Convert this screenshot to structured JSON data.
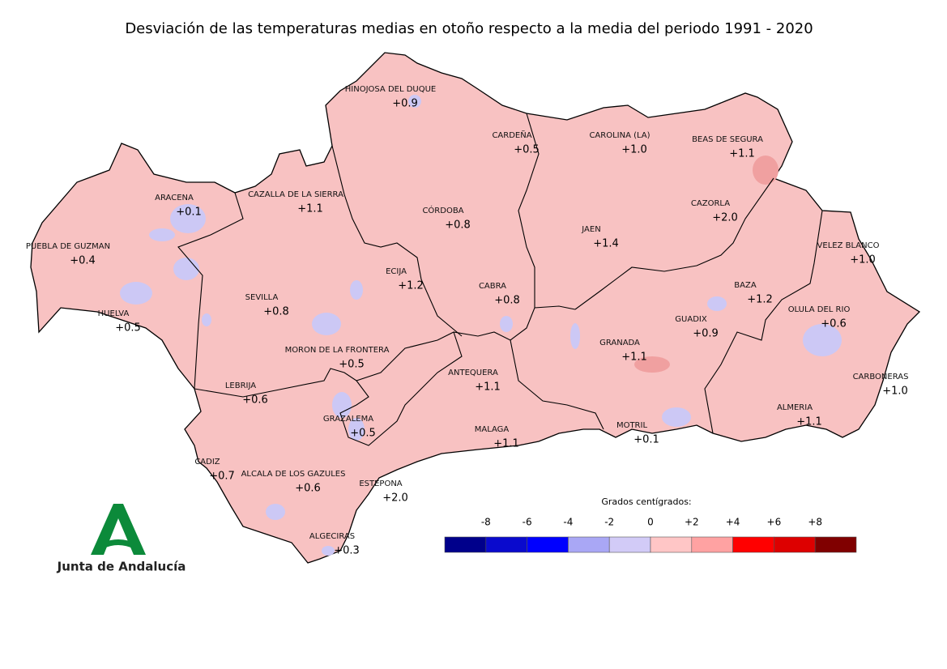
{
  "title": "Desviación de las temperaturas medias en otoño respecto a la media del periodo 1991 - 2020",
  "stations": [
    {
      "name": "HINOJOSA DEL DUQUE",
      "value": "+0.9"
    },
    {
      "name": "CARDEÑA",
      "value": "+0.5"
    },
    {
      "name": "CAROLINA (LA)",
      "value": "+1.0"
    },
    {
      "name": "BEAS DE SEGURA",
      "value": "+1.1"
    },
    {
      "name": "ARACENA",
      "value": "+0.1"
    },
    {
      "name": "CAZALLA DE LA SIERRA",
      "value": "+1.1"
    },
    {
      "name": "CÓRDOBA",
      "value": "+0.8"
    },
    {
      "name": "CAZORLA",
      "value": "+2.0"
    },
    {
      "name": "JAEN",
      "value": "+1.4"
    },
    {
      "name": "PUEBLA DE GUZMAN",
      "value": "+0.4"
    },
    {
      "name": "VELEZ BLANCO",
      "value": "+1.0"
    },
    {
      "name": "ECIJA",
      "value": "+1.2"
    },
    {
      "name": "CABRA",
      "value": "+0.8"
    },
    {
      "name": "BAZA",
      "value": "+1.2"
    },
    {
      "name": "SEVILLA",
      "value": "+0.8"
    },
    {
      "name": "HUELVA",
      "value": "+0.5"
    },
    {
      "name": "GUADIX",
      "value": "+0.9"
    },
    {
      "name": "OLULA DEL RIO",
      "value": "+0.6"
    },
    {
      "name": "GRANADA",
      "value": "+1.1"
    },
    {
      "name": "MORON DE LA FRONTERA",
      "value": "+0.5"
    },
    {
      "name": "ANTEQUERA",
      "value": "+1.1"
    },
    {
      "name": "CARBONERAS",
      "value": "+1.0"
    },
    {
      "name": "LEBRIJA",
      "value": "+0.6"
    },
    {
      "name": "GRAZALEMA",
      "value": "+0.5"
    },
    {
      "name": "MALAGA",
      "value": "+1.1"
    },
    {
      "name": "MOTRIL",
      "value": "+0.1"
    },
    {
      "name": "ALMERIA",
      "value": "+1.1"
    },
    {
      "name": "CADIZ",
      "value": "+0.7"
    },
    {
      "name": "ALCALA DE LOS GAZULES",
      "value": "+0.6"
    },
    {
      "name": "ESTEPONA",
      "value": "+2.0"
    },
    {
      "name": "ALGECIRAS",
      "value": "+0.3"
    }
  ],
  "legend": {
    "title": "Grados centígrados:",
    "ticks": [
      "-8",
      "-6",
      "-4",
      "-2",
      "0",
      "+2",
      "+4",
      "+6",
      "+8"
    ],
    "colors": [
      "#00008b",
      "#0a0acd",
      "#0000ff",
      "#a9a7f5",
      "#d2cbf7",
      "#ffc6c6",
      "#ffa2a2",
      "#ff0000",
      "#dd0000",
      "#800000"
    ]
  },
  "logo": "Junta de Andalucía"
}
